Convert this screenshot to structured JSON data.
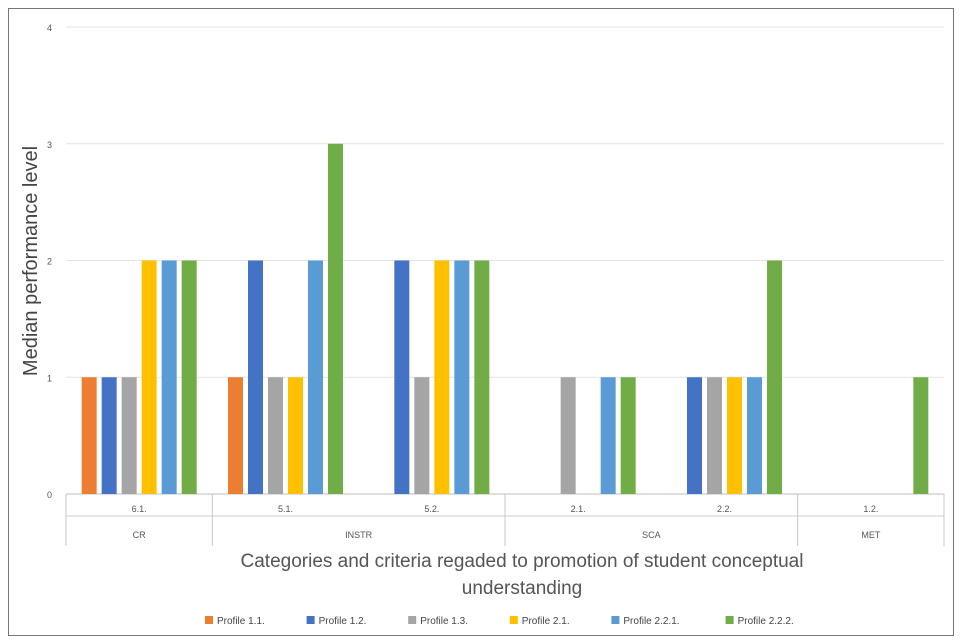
{
  "chart_data": {
    "type": "bar",
    "title": "",
    "xlabel": "Categories and criteria regaded to promotion of student conceptual understanding",
    "ylabel": "Median performance level",
    "ylim": [
      0,
      4
    ],
    "yticks": [
      0,
      1,
      2,
      3,
      4
    ],
    "grid": true,
    "legend_position": "bottom",
    "categories": [
      "6.1.",
      "5.1.",
      "5.2.",
      "2.1.",
      "2.2.",
      "1.2."
    ],
    "groups": [
      {
        "label": "CR",
        "categories": [
          "6.1."
        ]
      },
      {
        "label": "INSTR",
        "categories": [
          "5.1.",
          "5.2."
        ]
      },
      {
        "label": "SCA",
        "categories": [
          "2.1.",
          "2.2."
        ]
      },
      {
        "label": "MET",
        "categories": [
          "1.2."
        ]
      }
    ],
    "series": [
      {
        "name": "Profile 1.1.",
        "color": "#ED7D31",
        "values": [
          1,
          1,
          0,
          0,
          0,
          0
        ]
      },
      {
        "name": "Profile 1.2.",
        "color": "#4472C4",
        "values": [
          1,
          2,
          2,
          0,
          1,
          0
        ]
      },
      {
        "name": "Profile 1.3.",
        "color": "#A5A5A5",
        "values": [
          1,
          1,
          1,
          1,
          1,
          0
        ]
      },
      {
        "name": "Profile 2.1.",
        "color": "#FFC000",
        "values": [
          2,
          1,
          2,
          0,
          1,
          0
        ]
      },
      {
        "name": "Profile 2.2.1.",
        "color": "#5B9BD5",
        "values": [
          2,
          2,
          2,
          1,
          1,
          0
        ]
      },
      {
        "name": "Profile 2.2.2.",
        "color": "#70AD47",
        "values": [
          2,
          3,
          2,
          1,
          2,
          1
        ]
      }
    ]
  }
}
